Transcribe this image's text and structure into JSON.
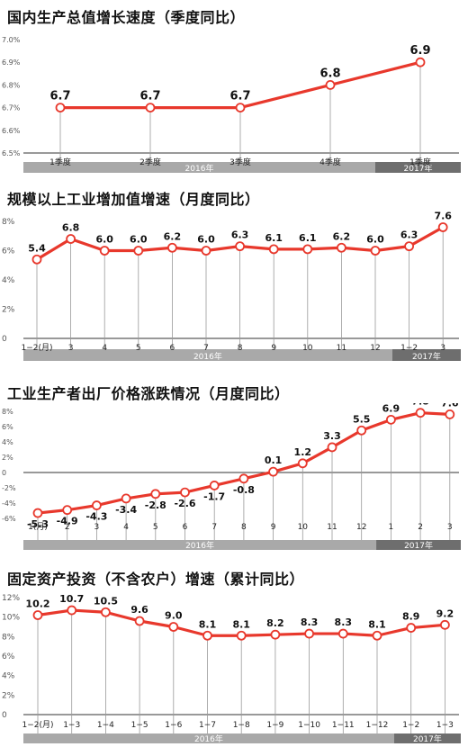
{
  "colors": {
    "line": "#e8382c",
    "marker_fill": "#ffffff",
    "band": "#a9a9a9",
    "band_dark": "#6e6e6e",
    "gridline": "#999999",
    "text": "#222222"
  },
  "chart_data": [
    {
      "type": "line",
      "title": "国内生产总值增长速度（季度同比）",
      "categories": [
        "1季度",
        "2季度",
        "3季度",
        "4季度",
        "1季度"
      ],
      "series": [
        {
          "values": [
            6.7,
            6.7,
            6.7,
            6.8,
            6.9
          ]
        }
      ],
      "data_labels": [
        "6.7",
        "6.7",
        "6.7",
        "6.8",
        "6.9"
      ],
      "y_ticks": [
        "6.5%",
        "6.6%",
        "6.7%",
        "6.8%",
        "6.9%",
        "7.0%"
      ],
      "ylim": [
        6.5,
        7.0
      ],
      "year_groups": [
        {
          "label": "2016年",
          "count": 4
        },
        {
          "label": "2017年",
          "count": 1
        }
      ],
      "grid": false
    },
    {
      "type": "line",
      "title": "规模以上工业增加值增速（月度同比）",
      "categories": [
        "1−2(月)",
        "3",
        "4",
        "5",
        "6",
        "7",
        "8",
        "9",
        "10",
        "11",
        "12",
        "1−2",
        "3"
      ],
      "series": [
        {
          "values": [
            5.4,
            6.8,
            6.0,
            6.0,
            6.2,
            6.0,
            6.3,
            6.1,
            6.1,
            6.2,
            6.0,
            6.3,
            7.6
          ]
        }
      ],
      "data_labels": [
        "5.4",
        "6.8",
        "6.0",
        "6.0",
        "6.2",
        "6.0",
        "6.3",
        "6.1",
        "6.1",
        "6.2",
        "6.0",
        "6.3",
        "7.6"
      ],
      "y_ticks": [
        "0",
        "2%",
        "4%",
        "6%",
        "8%"
      ],
      "ylim": [
        0,
        8
      ],
      "year_groups": [
        {
          "label": "2016年",
          "count": 11
        },
        {
          "label": "2017年",
          "count": 2
        }
      ],
      "grid": false
    },
    {
      "type": "line",
      "title": "工业生产者出厂价格涨跌情况（月度同比）",
      "categories": [
        "1(月)",
        "2",
        "3",
        "4",
        "5",
        "6",
        "7",
        "8",
        "9",
        "10",
        "11",
        "12",
        "1",
        "2",
        "3"
      ],
      "series": [
        {
          "values": [
            -5.3,
            -4.9,
            -4.3,
            -3.4,
            -2.8,
            -2.6,
            -1.7,
            -0.8,
            0.1,
            1.2,
            3.3,
            5.5,
            6.9,
            7.8,
            7.6
          ]
        }
      ],
      "data_labels": [
        "-5.3",
        "-4.9",
        "-4.3",
        "-3.4",
        "-2.8",
        "-2.6",
        "-1.7",
        "-0.8",
        "0.1",
        "1.2",
        "3.3",
        "5.5",
        "6.9",
        "7.8",
        "7.6"
      ],
      "y_ticks": [
        "-6%",
        "-4%",
        "-2%",
        "0",
        "2%",
        "4%",
        "6%",
        "8%"
      ],
      "ylim": [
        -6,
        8
      ],
      "year_groups": [
        {
          "label": "2016年",
          "count": 12
        },
        {
          "label": "2017年",
          "count": 3
        }
      ],
      "grid": false
    },
    {
      "type": "line",
      "title": "固定资产投资（不含农户）增速（累计同比）",
      "categories": [
        "1−2(月)",
        "1−3",
        "1−4",
        "1−5",
        "1−6",
        "1−7",
        "1−8",
        "1−9",
        "1−10",
        "1−11",
        "1−12",
        "1−2",
        "1−3"
      ],
      "series": [
        {
          "values": [
            10.2,
            10.7,
            10.5,
            9.6,
            9.0,
            8.1,
            8.1,
            8.2,
            8.3,
            8.3,
            8.1,
            8.9,
            9.2
          ]
        }
      ],
      "data_labels": [
        "10.2",
        "10.7",
        "10.5",
        "9.6",
        "9.0",
        "8.1",
        "8.1",
        "8.2",
        "8.3",
        "8.3",
        "8.1",
        "8.9",
        "9.2"
      ],
      "y_ticks": [
        "0",
        "2%",
        "4%",
        "6%",
        "8%",
        "10%",
        "12%"
      ],
      "ylim": [
        0,
        12
      ],
      "year_groups": [
        {
          "label": "2016年",
          "count": 11
        },
        {
          "label": "2017年",
          "count": 2
        }
      ],
      "grid": false
    }
  ]
}
